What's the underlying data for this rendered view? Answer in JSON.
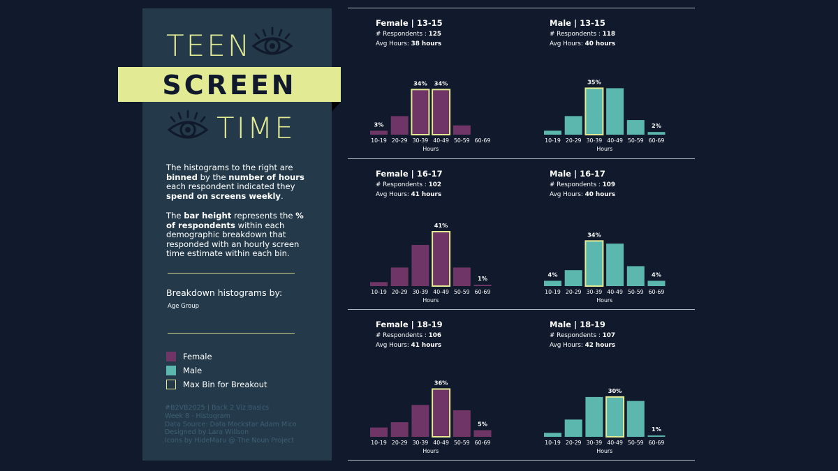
{
  "title": {
    "word1": "TEEN",
    "word2": "SCREEN",
    "word3": "TIME"
  },
  "description": {
    "p1": [
      "The histograms to the right are ",
      "binned",
      " by the ",
      "number of hours",
      " each respondent indicated they ",
      "spend on screens weekly",
      "."
    ],
    "p2": [
      "The ",
      "bar height",
      " represents the ",
      "% of respondents",
      " within each demographic breakdown that responded with an hourly screen time estimate within each bin."
    ]
  },
  "breakdown": {
    "title": "Breakdown histograms by:",
    "value": "Age Group"
  },
  "legend": [
    {
      "label": "Female",
      "color": "#6f3566",
      "outline": false
    },
    {
      "label": "Male",
      "color": "#5cb8ae",
      "outline": false
    },
    {
      "label": "Max Bin for Breakout",
      "color": "#e3ea94",
      "outline": true
    }
  ],
  "credits": [
    "#B2VB2025 | Back 2 Viz Basics",
    "Week 8 - Histogram",
    "Data Source: Data Mockstar Adam Mico",
    "Designed by Lara Willson",
    "Icons by HideMaru @ The Noun Project"
  ],
  "colors": {
    "female": "#6f3566",
    "male": "#5cb8ae",
    "highlight": "#e3ea94"
  },
  "respondents_label": "# Respondents : ",
  "avg_label": "Avg Hours: ",
  "chart_data": [
    {
      "type": "bar",
      "title": "Female | 13-15",
      "respondents": "125",
      "avg_hours": "38 hours",
      "series": "Female",
      "categories": [
        "10-19",
        "20-29",
        "30-39",
        "40-49",
        "50-59",
        "60-69"
      ],
      "xlabel": "Hours",
      "values": [
        3,
        14,
        34,
        34,
        7,
        0
      ],
      "labels": [
        "3%",
        "",
        "34%",
        "34%",
        "",
        ""
      ],
      "highlight": [
        2,
        3
      ],
      "ylim": [
        0,
        41
      ]
    },
    {
      "type": "bar",
      "title": "Male | 13-15",
      "respondents": "118",
      "avg_hours": "40 hours",
      "series": "Male",
      "categories": [
        "10-19",
        "20-29",
        "30-39",
        "40-49",
        "50-59",
        "60-69"
      ],
      "xlabel": "Hours",
      "values": [
        3,
        14,
        35,
        35,
        11,
        2
      ],
      "labels": [
        "",
        "",
        "35%",
        "",
        "",
        "2%"
      ],
      "highlight": [
        2
      ],
      "ylim": [
        0,
        41
      ]
    },
    {
      "type": "bar",
      "title": "Female | 16-17",
      "respondents": "102",
      "avg_hours": "41 hours",
      "series": "Female",
      "categories": [
        "10-19",
        "20-29",
        "30-39",
        "40-49",
        "50-59",
        "60-69"
      ],
      "xlabel": "Hours",
      "values": [
        3,
        14,
        31,
        41,
        14,
        1
      ],
      "labels": [
        "",
        "",
        "",
        "41%",
        "",
        "1%"
      ],
      "highlight": [
        3
      ],
      "ylim": [
        0,
        41
      ]
    },
    {
      "type": "bar",
      "title": "Male | 16-17",
      "respondents": "109",
      "avg_hours": "40 hours",
      "series": "Male",
      "categories": [
        "10-19",
        "20-29",
        "30-39",
        "40-49",
        "50-59",
        "60-69"
      ],
      "xlabel": "Hours",
      "values": [
        4,
        12,
        34,
        32,
        15,
        4
      ],
      "labels": [
        "4%",
        "",
        "34%",
        "",
        "",
        "4%"
      ],
      "highlight": [
        2
      ],
      "ylim": [
        0,
        41
      ]
    },
    {
      "type": "bar",
      "title": "Female | 18-19",
      "respondents": "106",
      "avg_hours": "41 hours",
      "series": "Female",
      "categories": [
        "10-19",
        "20-29",
        "30-39",
        "40-49",
        "50-59",
        "60-69"
      ],
      "xlabel": "Hours",
      "values": [
        7,
        11,
        24,
        36,
        20,
        5
      ],
      "labels": [
        "",
        "",
        "",
        "36%",
        "",
        "5%"
      ],
      "highlight": [
        3
      ],
      "ylim": [
        0,
        41
      ]
    },
    {
      "type": "bar",
      "title": "Male | 18-19",
      "respondents": "107",
      "avg_hours": "42 hours",
      "series": "Male",
      "categories": [
        "10-19",
        "20-29",
        "30-39",
        "40-49",
        "50-59",
        "60-69"
      ],
      "xlabel": "Hours",
      "values": [
        3,
        13,
        30,
        30,
        27,
        1
      ],
      "labels": [
        "",
        "",
        "",
        "30%",
        "",
        "1%"
      ],
      "highlight": [
        3
      ],
      "ylim": [
        0,
        41
      ]
    }
  ]
}
